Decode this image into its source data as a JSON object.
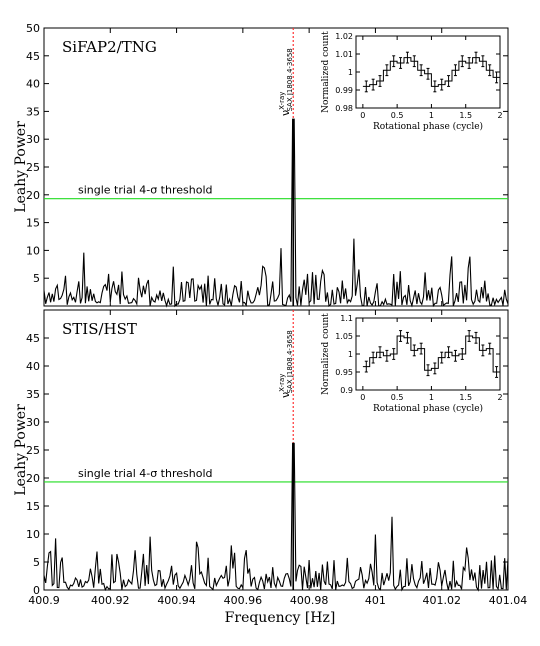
{
  "xlabel": "Frequency [Hz]",
  "ylabel": "Leahy Power",
  "x_ticks": [
    "400.9",
    "400.92",
    "400.94",
    "400.96",
    "400.98",
    "401",
    "401.02",
    "401.04"
  ],
  "colors": {
    "trace": "#000000",
    "threshold": "#22dd22",
    "marker": "#ff3333"
  },
  "chart_data": [
    {
      "type": "line",
      "panel_label": "SiFAP2/TNG",
      "xlabel": "Frequency [Hz]",
      "ylabel": "Leahy Power",
      "xlim": [
        400.9,
        401.04
      ],
      "ylim": [
        0,
        50
      ],
      "y_ticks": [
        "5",
        "10",
        "15",
        "20",
        "25",
        "30",
        "35",
        "40",
        "45",
        "50"
      ],
      "threshold": {
        "value": 19.3,
        "label": "single trial 4-σ threshold"
      },
      "marker": {
        "x": 400.9752,
        "label_main": "ν",
        "label_sup": "X-ray",
        "label_sub": "SAX J1808.4-3658"
      },
      "peak": {
        "x": 400.9752,
        "y": 33.6
      },
      "series": [
        {
          "seed": 17
        }
      ],
      "inset": {
        "type": "step",
        "xlabel": "Rotational phase (cycle)",
        "ylabel": "Normalized count",
        "xlim": [
          -0.1,
          2
        ],
        "ylim": [
          0.98,
          1.02
        ],
        "x_ticks": [
          "0",
          "0.5",
          "1",
          "1.5",
          "2"
        ],
        "y_ticks": [
          "0.98",
          "0.99",
          "1",
          "1.01",
          "1.02"
        ],
        "phase": [
          0.05,
          0.15,
          0.25,
          0.35,
          0.45,
          0.55,
          0.65,
          0.75,
          0.85,
          0.95,
          1.05,
          1.15,
          1.25,
          1.35,
          1.45,
          1.55,
          1.65,
          1.75,
          1.85,
          1.95
        ],
        "values": [
          0.992,
          0.993,
          0.995,
          1.001,
          1.006,
          1.005,
          1.008,
          1.006,
          1.001,
          0.999,
          0.992,
          0.993,
          0.995,
          1.001,
          1.006,
          1.005,
          1.008,
          1.006,
          1.001,
          0.997
        ],
        "errors": [
          0.003,
          0.003,
          0.003,
          0.003,
          0.003,
          0.003,
          0.003,
          0.003,
          0.003,
          0.003,
          0.003,
          0.003,
          0.003,
          0.003,
          0.003,
          0.003,
          0.003,
          0.003,
          0.003,
          0.003
        ]
      }
    },
    {
      "type": "line",
      "panel_label": "STIS/HST",
      "xlabel": "Frequency [Hz]",
      "ylabel": "Leahy Power",
      "xlim": [
        400.9,
        401.04
      ],
      "ylim": [
        0,
        50
      ],
      "y_ticks": [
        "0",
        "5",
        "10",
        "15",
        "20",
        "25",
        "30",
        "35",
        "40",
        "45"
      ],
      "threshold": {
        "value": 19.3,
        "label": "single trial 4-σ threshold"
      },
      "marker": {
        "x": 400.9752,
        "label_main": "ν",
        "label_sup": "X-ray",
        "label_sub": "SAX J1808.4-3658"
      },
      "peak": {
        "x": 400.9752,
        "y": 26.2
      },
      "series": [
        {
          "seed": 91
        }
      ],
      "inset": {
        "type": "step",
        "xlabel": "Rotational phase (cycle)",
        "ylabel": "Normalized count",
        "xlim": [
          -0.1,
          2
        ],
        "ylim": [
          0.9,
          1.1
        ],
        "x_ticks": [
          "0",
          "0.5",
          "1",
          "1.5",
          "2"
        ],
        "y_ticks": [
          "0.9",
          "0.95",
          "1",
          "1.05",
          "1.1"
        ],
        "phase": [
          0.05,
          0.15,
          0.25,
          0.35,
          0.45,
          0.55,
          0.65,
          0.75,
          0.85,
          0.95,
          1.05,
          1.15,
          1.25,
          1.35,
          1.45,
          1.55,
          1.65,
          1.75,
          1.85,
          1.95
        ],
        "values": [
          0.965,
          0.99,
          1.005,
          0.995,
          1.0,
          1.05,
          1.045,
          1.01,
          1.015,
          0.955,
          0.96,
          0.99,
          1.005,
          0.995,
          1.0,
          1.05,
          1.045,
          1.01,
          1.015,
          0.95
        ],
        "errors": [
          0.015,
          0.015,
          0.015,
          0.015,
          0.015,
          0.015,
          0.015,
          0.015,
          0.015,
          0.015,
          0.015,
          0.015,
          0.015,
          0.015,
          0.015,
          0.015,
          0.015,
          0.015,
          0.015,
          0.015
        ]
      }
    }
  ]
}
